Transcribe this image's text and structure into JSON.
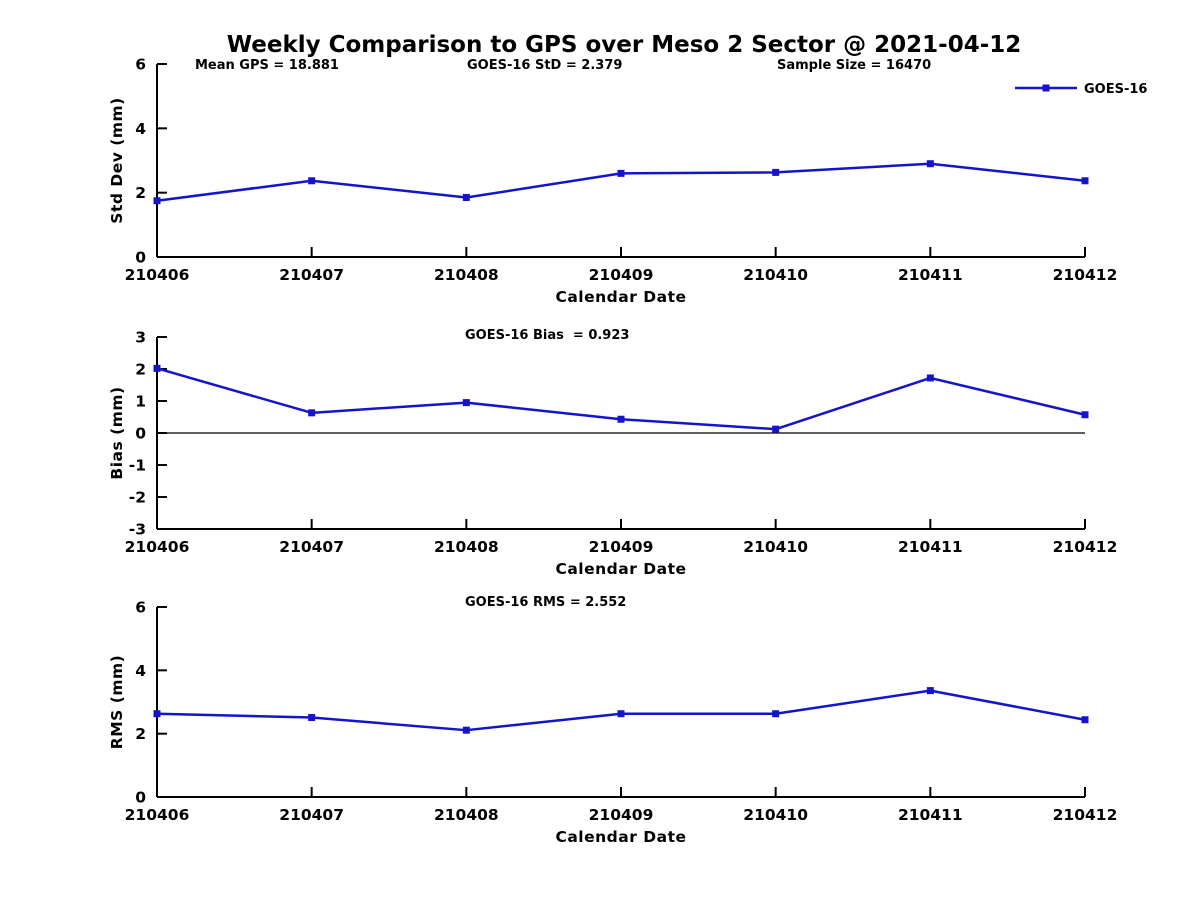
{
  "page": {
    "title": "Weekly Comparison to GPS over Meso 2 Sector @ 2021-04-12"
  },
  "legend": {
    "label": "GOES-16"
  },
  "colors": {
    "line": "#1414cc",
    "axis": "#000000",
    "zero_line": "#000000",
    "background": "#ffffff",
    "text": "#000000"
  },
  "chart_data": [
    {
      "type": "line",
      "ylabel": "Std Dev (mm)",
      "xlabel": "Calendar Date",
      "ylim": [
        0,
        6
      ],
      "yticks": [
        0,
        2,
        4,
        6
      ],
      "categories": [
        "210406",
        "210407",
        "210408",
        "210409",
        "210410",
        "210411",
        "210412"
      ],
      "series": [
        {
          "name": "GOES-16",
          "values": [
            1.75,
            2.37,
            1.85,
            2.6,
            2.63,
            2.9,
            2.37
          ]
        }
      ],
      "annotations": [
        "Mean GPS = 18.881",
        "GOES-16 StD = 2.379",
        "Sample Size = 16470"
      ],
      "grid": false,
      "legend_position": "top-right"
    },
    {
      "type": "line",
      "ylabel": "Bias (mm)",
      "xlabel": "Calendar Date",
      "ylim": [
        -3,
        3
      ],
      "yticks": [
        -3,
        -2,
        -1,
        0,
        1,
        2,
        3
      ],
      "categories": [
        "210406",
        "210407",
        "210408",
        "210409",
        "210410",
        "210411",
        "210412"
      ],
      "series": [
        {
          "name": "GOES-16",
          "values": [
            2.02,
            0.63,
            0.95,
            0.43,
            0.12,
            1.72,
            0.57
          ]
        }
      ],
      "annotations": [
        "GOES-16 Bias  = 0.923"
      ],
      "grid": false,
      "zero_line": true
    },
    {
      "type": "line",
      "ylabel": "RMS (mm)",
      "xlabel": "Calendar Date",
      "ylim": [
        0,
        6
      ],
      "yticks": [
        0,
        2,
        4,
        6
      ],
      "categories": [
        "210406",
        "210407",
        "210408",
        "210409",
        "210410",
        "210411",
        "210412"
      ],
      "series": [
        {
          "name": "GOES-16",
          "values": [
            2.63,
            2.51,
            2.11,
            2.63,
            2.63,
            3.36,
            2.44
          ]
        }
      ],
      "annotations": [
        "GOES-16 RMS = 2.552"
      ],
      "grid": false
    }
  ]
}
